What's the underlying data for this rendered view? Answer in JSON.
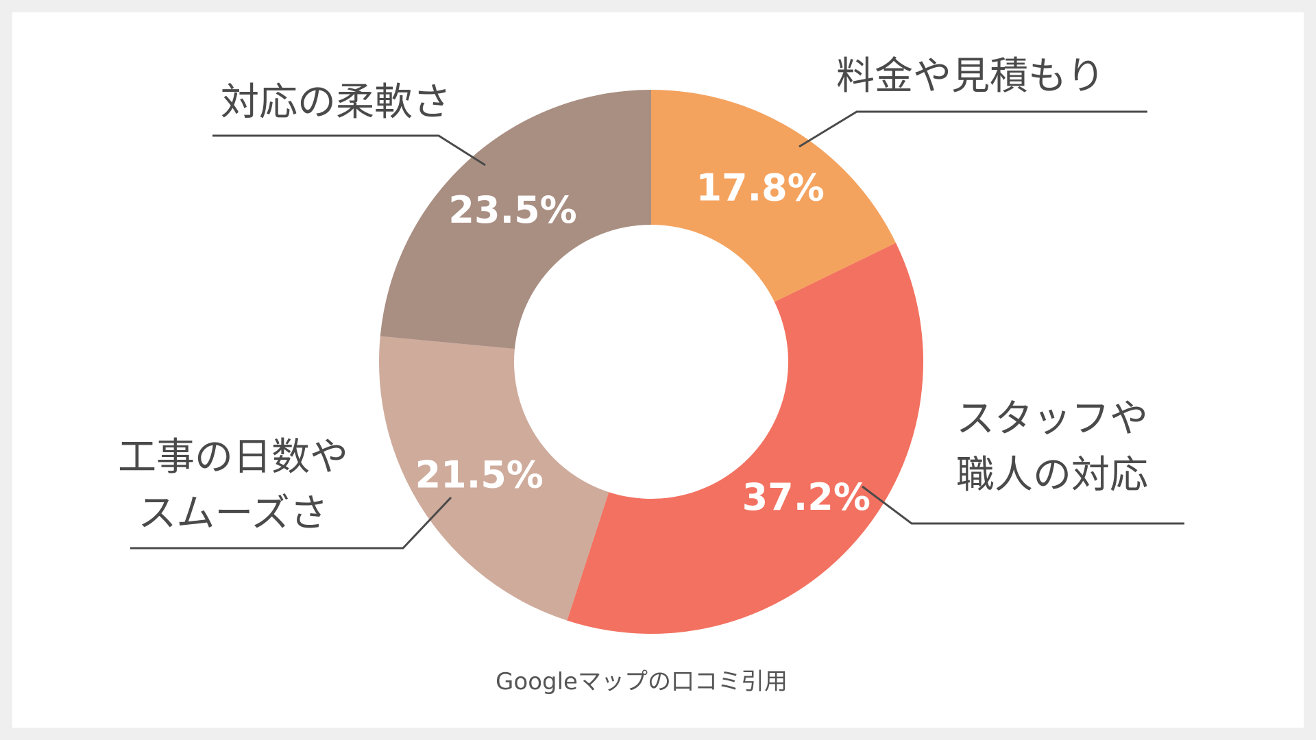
{
  "chart_data": {
    "type": "pie",
    "categories": [
      "料金や見積もり",
      "スタッフや職人の対応",
      "工事の日数やスムーズさ",
      "対応の柔軟さ"
    ],
    "label_lines": [
      [
        "料金や見積もり"
      ],
      [
        "スタッフや",
        "職人の対応"
      ],
      [
        "工事の日数や",
        "スムーズさ"
      ],
      [
        "対応の柔軟さ"
      ]
    ],
    "values": [
      17.8,
      37.2,
      21.5,
      23.5
    ],
    "value_labels": [
      "17.8%",
      "37.2%",
      "21.5%",
      "23.5%"
    ],
    "colors": [
      "#f4a35f",
      "#f37160",
      "#cfab9c",
      "#a98e82"
    ],
    "unit": "%",
    "donut": true,
    "start_angle": "12 o'clock",
    "direction": "clockwise",
    "legend": "none"
  },
  "caption": "Googleマップの口コミ引用"
}
